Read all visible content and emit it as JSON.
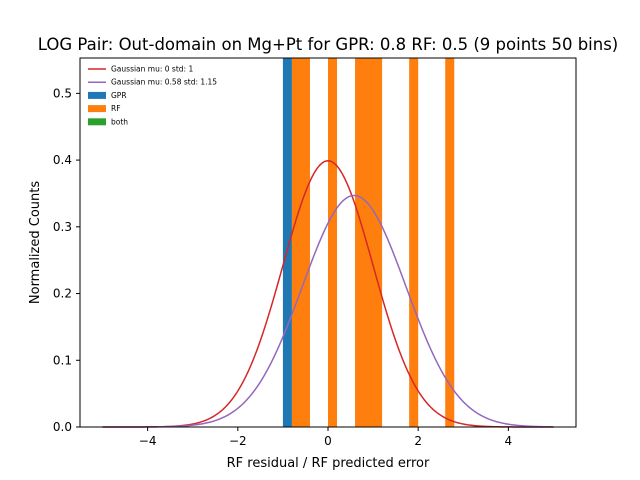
{
  "chart_data": {
    "type": "bar",
    "title": "LOG Pair: Out-domain on Mg+Pt for GPR: 0.8 RF: 0.5 (9 points 50 bins)",
    "xlabel": "RF residual / RF predicted error",
    "ylabel": "Normalized Counts",
    "xlim": [
      -5.5,
      5.5
    ],
    "ylim": [
      0,
      0.553
    ],
    "xticks": [
      -4,
      -2,
      0,
      2,
      4
    ],
    "xtick_labels": [
      "−4",
      "−2",
      "0",
      "2",
      "4"
    ],
    "yticks": [
      0.0,
      0.1,
      0.2,
      0.3,
      0.4,
      0.5
    ],
    "ytick_labels": [
      "0.0",
      "0.1",
      "0.2",
      "0.3",
      "0.4",
      "0.5"
    ],
    "legend_position": "top-left",
    "legend": [
      {
        "label": "Gaussian mu: 0 std: 1",
        "kind": "line",
        "color": "#d62728"
      },
      {
        "label": "Gaussian mu: 0.58 std: 1.15",
        "kind": "line",
        "color": "#9467bd"
      },
      {
        "label": "GPR",
        "kind": "patch",
        "color": "#1f77b4"
      },
      {
        "label": "RF",
        "kind": "patch",
        "color": "#ff7f0e"
      },
      {
        "label": "both",
        "kind": "patch",
        "color": "#2ca02c"
      }
    ],
    "histograms": [
      {
        "name": "GPR",
        "color": "#1f77b4",
        "bins": [
          [
            -1.0,
            -0.8
          ]
        ]
      },
      {
        "name": "RF",
        "color": "#ff7f0e",
        "bins": [
          [
            -0.8,
            -0.4
          ],
          [
            0.0,
            0.2
          ],
          [
            0.6,
            1.2
          ],
          [
            1.8,
            2.0
          ],
          [
            2.6,
            2.8
          ]
        ]
      }
    ],
    "series": [
      {
        "name": "Gaussian mu: 0 std: 1",
        "color": "#d62728",
        "mu": 0,
        "std": 1,
        "x_range": [
          -5,
          5
        ]
      },
      {
        "name": "Gaussian mu: 0.58 std: 1.15",
        "color": "#9467bd",
        "mu": 0.58,
        "std": 1.15,
        "x_range": [
          -5,
          5
        ]
      }
    ]
  }
}
